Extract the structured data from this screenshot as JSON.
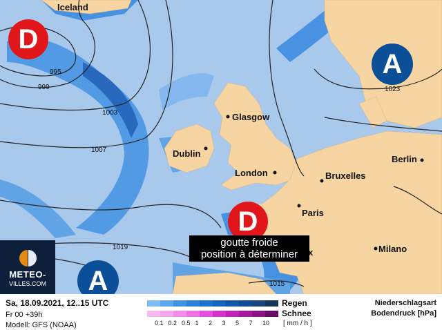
{
  "map": {
    "colors": {
      "sea": "#a9c9ec",
      "land": "#f6d5a2",
      "rain_light": "#7fb6ee",
      "rain_mid": "#3d8ce0",
      "rain_dark": "#1c5fb8",
      "low": "#e0161b",
      "high": "#0a4f97"
    },
    "cities": [
      {
        "name": "Iceland"
      },
      {
        "name": "Glasgow"
      },
      {
        "name": "Dublin"
      },
      {
        "name": "London"
      },
      {
        "name": "Bruxelles"
      },
      {
        "name": "Paris"
      },
      {
        "name": "Berlin"
      },
      {
        "name": "Milano"
      },
      {
        "name": "x"
      }
    ],
    "isobar_labels": [
      "995",
      "999",
      "1003",
      "1007",
      "1019",
      "1023",
      "1015"
    ],
    "pressure_centers": [
      {
        "type": "low",
        "letter": "D"
      },
      {
        "type": "high",
        "letter": "A"
      },
      {
        "type": "low",
        "letter": "D"
      },
      {
        "type": "high",
        "letter": "A"
      }
    ],
    "annotation": [
      "goutte froide",
      "position à déterminer"
    ]
  },
  "logo": {
    "line1": "METEO-",
    "line2": "VILLES.COM"
  },
  "legend": {
    "date": "Sa, 18.09.2021, 12..15 UTC",
    "run": "Fr 00 +39h",
    "model": "Modell: GFS (NOAA)",
    "rain_label": "Regen",
    "snow_label": "Schnee",
    "unit": "[ mm / h ]",
    "title1": "Niederschlagsart",
    "title2": "Bodendruck [hPa]",
    "scale": [
      "0.1",
      "0.2",
      "0.5",
      "1",
      "2",
      "3",
      "5",
      "7",
      "10"
    ],
    "rain_colors": [
      "#7dbcf5",
      "#5aa6ef",
      "#3d93e6",
      "#2a82dd",
      "#1c72cf",
      "#1765bd",
      "#1258aa",
      "#0e4a96",
      "#1a4480",
      "#153458"
    ],
    "snow_colors": [
      "#f8b8f0",
      "#f7a6ee",
      "#f58cec",
      "#f070e6",
      "#e84ce0",
      "#d830cc",
      "#c020b8",
      "#a6189f",
      "#8a1186",
      "#6a0a66"
    ]
  }
}
